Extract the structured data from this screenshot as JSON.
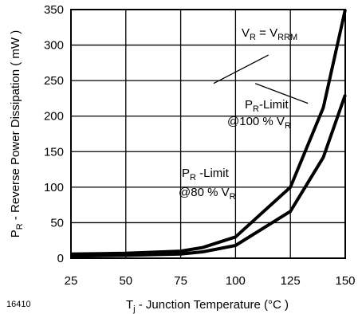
{
  "figure_id": "16410",
  "chart_data": {
    "type": "line",
    "xlabel": {
      "main": "T",
      "sub": "j",
      "rest": " - Junction Temperature (°C )"
    },
    "ylabel": {
      "main": "P",
      "sub": "R",
      "rest": " - Reverse Power Dissipation ( mW )"
    },
    "xlim": [
      25,
      150
    ],
    "ylim": [
      0,
      350
    ],
    "x_ticks": [
      25,
      50,
      75,
      100,
      125,
      150
    ],
    "y_ticks": [
      0,
      50,
      100,
      150,
      200,
      250,
      300,
      350
    ],
    "grid": true,
    "series": [
      {
        "name": "PR-Limit @100 % VR",
        "x": [
          25,
          50,
          75,
          85,
          100,
          125,
          140,
          150
        ],
        "values": [
          6,
          7,
          10,
          15,
          30,
          100,
          212,
          350
        ]
      },
      {
        "name": "PR-Limit @80 % VR",
        "x": [
          25,
          50,
          75,
          85,
          100,
          125,
          140,
          150
        ],
        "values": [
          3,
          4,
          6,
          9,
          18,
          66,
          142,
          230
        ]
      }
    ],
    "annotations": {
      "vr_eq": {
        "v": "V",
        "r_sub": "R",
        "eq": " = V",
        "rrm_sub": "RRM"
      },
      "limit100": {
        "line1_main": "P",
        "line1_sub": "R",
        "line1_rest": "-Limit",
        "line2_main": "@100 % V",
        "line2_sub": "R"
      },
      "limit80": {
        "line1_main": "P",
        "line1_sub": "R",
        "line1_rest": " -Limit",
        "line2_main": "@80 % V",
        "line2_sub": "R"
      }
    }
  }
}
